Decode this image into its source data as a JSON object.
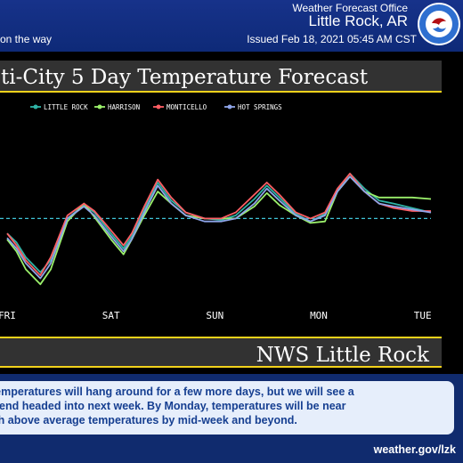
{
  "header": {
    "office": "Weather Forecast Office",
    "city": "Little Rock, AR",
    "issued": "Issued Feb 18, 2021 05:45 AM CST",
    "headline_fragment": "on the way"
  },
  "colors": {
    "background": "#0d2a6e",
    "accent_yellow": "#f3d21b",
    "Little Rock": "#2fb3a6",
    "Harrison": "#9bf06b",
    "Monticello": "#ff5e64",
    "Hot Springs": "#8ea4e8",
    "reference_line": "#3fc4d6"
  },
  "chart_data": {
    "type": "line",
    "title": "ti-City 5 Day Temperature Forecast",
    "xlabel": "",
    "ylabel": "",
    "x_ticks": [
      "FRI",
      "SAT",
      "SUN",
      "MON",
      "TUE"
    ],
    "x": [
      0,
      0.09,
      0.18,
      0.32,
      0.42,
      0.58,
      0.74,
      0.84,
      1.0,
      1.12,
      1.2,
      1.32,
      1.45,
      1.58,
      1.72,
      1.9,
      2.06,
      2.2,
      2.38,
      2.5,
      2.62,
      2.78,
      2.92,
      3.06,
      3.18,
      3.3,
      3.44,
      3.58,
      3.72,
      3.9,
      4.08
    ],
    "ylim": [
      0,
      100
    ],
    "reference_line": 48,
    "series": [
      {
        "name": "Little Rock",
        "values": [
          38,
          32,
          22,
          12,
          20,
          48,
          57,
          52,
          38,
          28,
          36,
          54,
          72,
          60,
          52,
          48,
          47,
          50,
          61,
          70,
          62,
          51,
          46,
          51,
          67,
          78,
          68,
          60,
          58,
          55,
          52
        ]
      },
      {
        "name": "Harrison",
        "values": [
          34,
          26,
          14,
          4,
          14,
          46,
          58,
          49,
          34,
          24,
          34,
          50,
          66,
          58,
          50,
          48,
          48,
          48,
          56,
          65,
          57,
          50,
          45,
          46,
          66,
          76,
          66,
          62,
          62,
          62,
          61
        ]
      },
      {
        "name": "Monticello",
        "values": [
          38,
          30,
          20,
          10,
          22,
          50,
          58,
          53,
          40,
          30,
          38,
          56,
          74,
          62,
          52,
          48,
          48,
          52,
          64,
          72,
          64,
          52,
          48,
          52,
          68,
          78,
          66,
          58,
          55,
          53,
          53
        ]
      },
      {
        "name": "Hot Springs",
        "values": [
          35,
          28,
          18,
          8,
          18,
          48,
          56,
          50,
          36,
          26,
          34,
          52,
          70,
          58,
          50,
          46,
          46,
          48,
          58,
          68,
          60,
          50,
          46,
          50,
          66,
          76,
          66,
          58,
          56,
          54,
          52
        ]
      }
    ],
    "grid": false,
    "legend_position": "top-left"
  },
  "footer": {
    "chart_caption": "NWS Little Rock",
    "summary_lines": [
      "temperatures will hang around for a few more days, but we will see a",
      "trend headed into next week. By Monday, temperatures will be near",
      "ith above average temperatures by mid-week and beyond."
    ],
    "url": "weather.gov/lzk"
  }
}
